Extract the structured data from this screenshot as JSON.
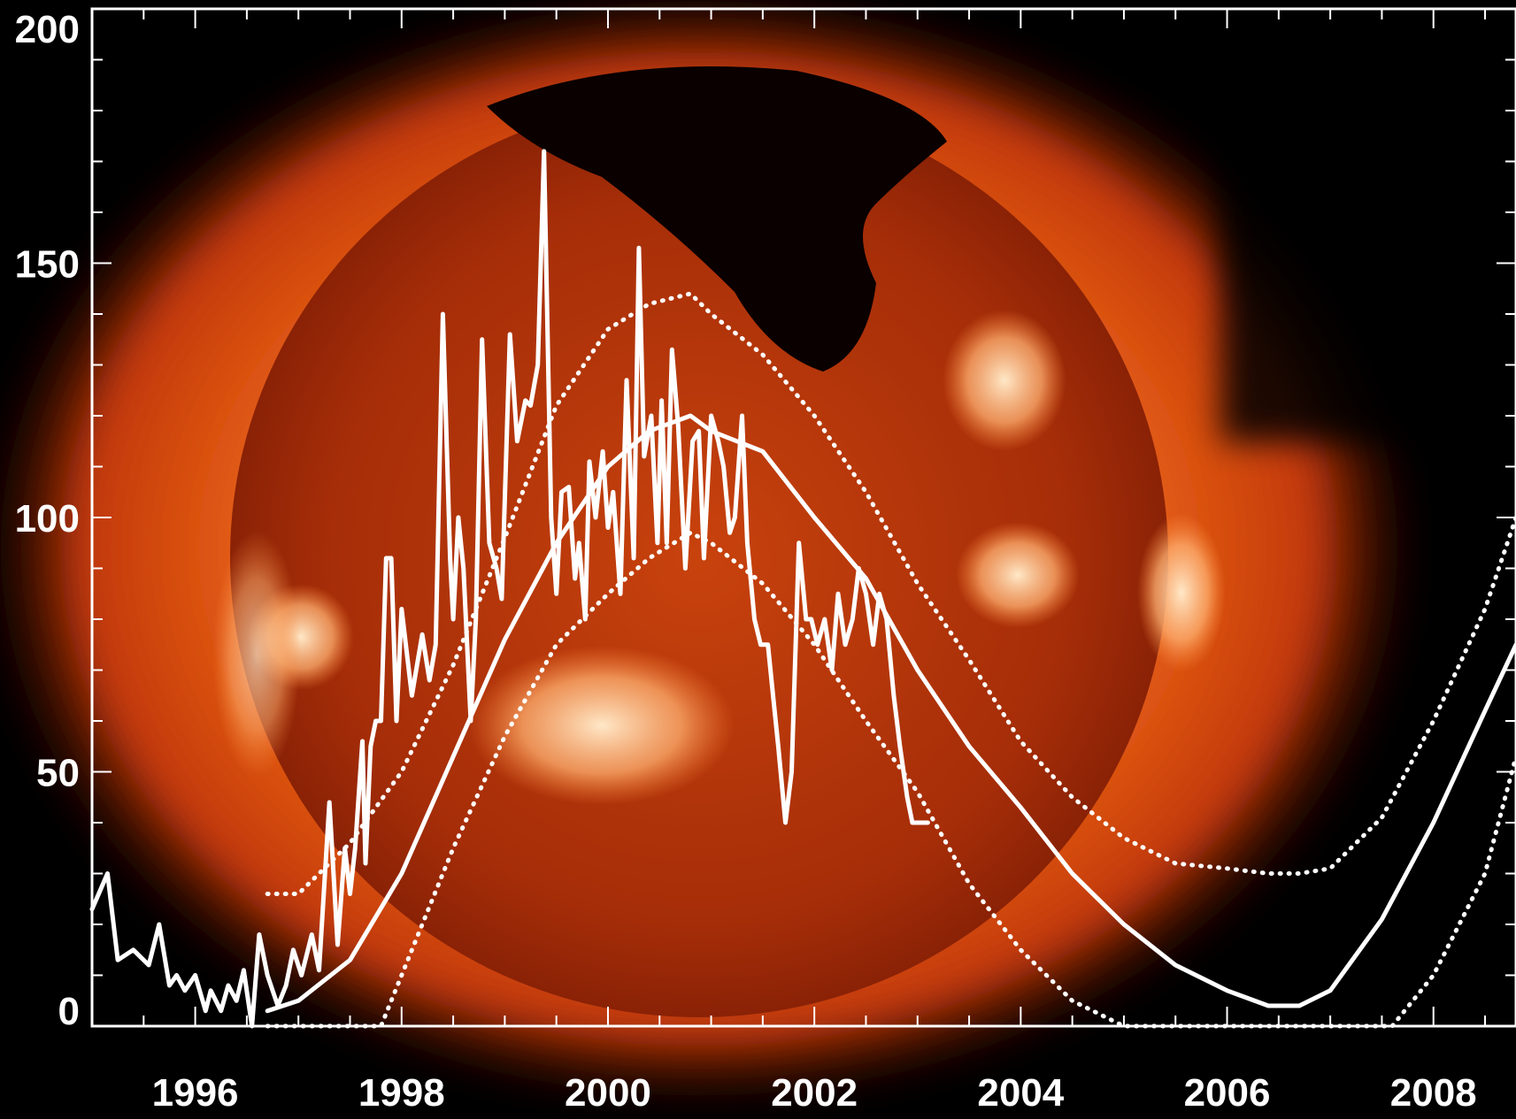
{
  "chart_data": {
    "type": "line",
    "title": "",
    "xlabel": "",
    "ylabel": "",
    "xlim": [
      1995.0,
      2008.8
    ],
    "ylim": [
      0,
      200
    ],
    "x_ticks": [
      {
        "value": 1996,
        "label": "1996"
      },
      {
        "value": 1998,
        "label": "1998"
      },
      {
        "value": 2000,
        "label": "2000"
      },
      {
        "value": 2002,
        "label": "2002"
      },
      {
        "value": 2004,
        "label": "2004"
      },
      {
        "value": 2006,
        "label": "2006"
      },
      {
        "value": 2008,
        "label": "2008"
      }
    ],
    "y_ticks": [
      {
        "value": 0,
        "label": "0"
      },
      {
        "value": 50,
        "label": "50"
      },
      {
        "value": 100,
        "label": "100"
      },
      {
        "value": 150,
        "label": "150"
      },
      {
        "value": 200,
        "label": "200"
      }
    ],
    "series": [
      {
        "style": "solid",
        "x": [
          1995.0,
          1995.15,
          1995.25,
          1995.4,
          1995.55,
          1995.65,
          1995.75,
          1995.82,
          1995.9,
          1996.0,
          1996.1,
          1996.15,
          1996.25,
          1996.32,
          1996.4,
          1996.47,
          1996.55,
          1996.62,
          1996.7,
          1996.8,
          1996.88,
          1996.95,
          1997.03,
          1997.13,
          1997.2,
          1997.3,
          1997.38,
          1997.45,
          1997.5,
          1997.55,
          1997.62,
          1997.65,
          1997.7,
          1997.75,
          1997.8,
          1997.85,
          1997.9,
          1997.95,
          1998.0,
          1998.1,
          1998.2,
          1998.27,
          1998.33,
          1998.4,
          1998.47,
          1998.5,
          1998.55,
          1998.6,
          1998.67,
          1998.72,
          1998.78,
          1998.85,
          1998.92,
          1998.97,
          1999.05,
          1999.12,
          1999.2,
          1999.25,
          1999.32,
          1999.38,
          1999.45,
          1999.5,
          1999.55,
          1999.62,
          1999.68,
          1999.72,
          1999.78,
          1999.82,
          1999.88,
          1999.95,
          2000.0,
          2000.05,
          2000.12,
          2000.18,
          2000.25,
          2000.3,
          2000.35,
          2000.42,
          2000.48,
          2000.52,
          2000.57,
          2000.62,
          2000.68,
          2000.75,
          2000.82,
          2000.88,
          2000.93,
          2001.0,
          2001.07,
          2001.12,
          2001.18,
          2001.23,
          2001.3,
          2001.35,
          2001.42,
          2001.48,
          2001.55,
          2001.6,
          2001.65,
          2001.72,
          2001.78,
          2001.85,
          2001.92,
          2001.97,
          2002.03,
          2002.1,
          2002.17,
          2002.23,
          2002.3,
          2002.37,
          2002.43,
          2002.5,
          2002.57,
          2002.63,
          2002.7,
          2002.77,
          2002.83,
          2002.9,
          2002.95,
          2003.03,
          2003.1
        ],
        "values": [
          23,
          30,
          13,
          15,
          12,
          20,
          8,
          10,
          7,
          10,
          3,
          7,
          3,
          8,
          5,
          11,
          0,
          18,
          10,
          4,
          8,
          15,
          10,
          18,
          11,
          44,
          16,
          35,
          26,
          35,
          56,
          32,
          55,
          60,
          60,
          92,
          92,
          60,
          82,
          65,
          77,
          68,
          75,
          140,
          92,
          80,
          100,
          90,
          60,
          80,
          135,
          95,
          90,
          84,
          136,
          115,
          123,
          122,
          130,
          172,
          100,
          85,
          105,
          106,
          88,
          95,
          80,
          111,
          100,
          113,
          98,
          105,
          85,
          127,
          92,
          153,
          112,
          120,
          95,
          123,
          95,
          133,
          118,
          90,
          115,
          117,
          92,
          120,
          115,
          110,
          97,
          100,
          120,
          95,
          80,
          75,
          75,
          65,
          55,
          40,
          50,
          95,
          80,
          80,
          75,
          80,
          70,
          85,
          75,
          80,
          90,
          85,
          75,
          85,
          80,
          65,
          55,
          45,
          40,
          40,
          40
        ]
      },
      {
        "style": "solid",
        "x": [
          1996.7,
          1997.0,
          1997.5,
          1998.0,
          1998.5,
          1999.0,
          1999.5,
          2000.0,
          2000.4,
          2000.8,
          2001.0,
          2001.5,
          2002.0,
          2002.5,
          2003.0,
          2003.5,
          2004.0,
          2004.5,
          2005.0,
          2005.5,
          2006.0,
          2006.4,
          2006.7,
          2007.0,
          2007.5,
          2008.0,
          2008.5,
          2008.8
        ],
        "values": [
          3,
          5,
          13,
          30,
          53,
          76,
          95,
          110,
          117,
          120,
          117,
          113,
          100,
          88,
          70,
          55,
          43,
          30,
          20,
          12,
          7,
          4,
          4,
          7,
          21,
          40,
          62,
          75
        ]
      },
      {
        "style": "dotted",
        "x": [
          1996.7,
          1997.0,
          1997.5,
          1998.0,
          1998.5,
          1999.0,
          1999.5,
          2000.0,
          2000.4,
          2000.8,
          2001.0,
          2001.5,
          2002.0,
          2002.5,
          2003.0,
          2003.5,
          2004.0,
          2004.5,
          2005.0,
          2005.5,
          2006.0,
          2006.4,
          2006.7,
          2007.0,
          2007.5,
          2008.0,
          2008.5,
          2008.8
        ],
        "values": [
          26,
          26,
          36,
          50,
          71,
          96,
          122,
          137,
          142,
          144,
          140,
          132,
          120,
          105,
          87,
          72,
          56,
          45,
          37,
          32,
          31,
          30,
          30,
          31,
          41,
          60,
          82,
          100
        ]
      },
      {
        "style": "dotted",
        "x": [
          1996.7,
          1997.0,
          1997.5,
          1997.8,
          1998.0,
          1998.5,
          1999.0,
          1999.5,
          2000.0,
          2000.4,
          2000.8,
          2001.0,
          2001.5,
          2002.0,
          2002.5,
          2003.0,
          2003.5,
          2004.0,
          2004.5,
          2005.0,
          2006.0,
          2007.0,
          2007.6,
          2008.0,
          2008.5,
          2008.8
        ],
        "values": [
          0,
          0,
          0,
          0,
          10,
          35,
          57,
          75,
          85,
          92,
          97,
          95,
          87,
          75,
          60,
          46,
          28,
          15,
          5,
          0,
          0,
          0,
          0,
          10,
          30,
          53
        ]
      }
    ]
  },
  "colors": {
    "line": "#ffffff",
    "axis": "#ffffff",
    "background_deep": "#000000",
    "sun_outer": "#e85a10",
    "sun_disk": "#a62c08",
    "sun_glow": "#ffc48a",
    "coronal_hole": "#0a0000"
  }
}
